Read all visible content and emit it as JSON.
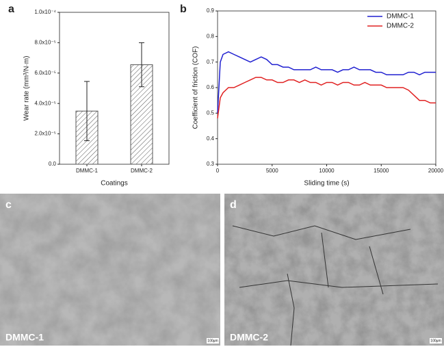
{
  "chart_data": [
    {
      "type": "bar",
      "panel": "a",
      "xlabel": "Coatings",
      "ylabel": "Wear rate (mm³/N·m)",
      "categories": [
        "DMMC-1",
        "DMMC-2"
      ],
      "values": [
        3.5e-05,
        6.55e-05
      ],
      "errors": [
        1.95e-05,
        1.45e-05
      ],
      "color": "#555555",
      "ylim": [
        0,
        0.0001
      ],
      "yticks": [
        {
          "value": 0,
          "label": "0.0"
        },
        {
          "value": 2e-05,
          "label": "2.0x10⁻⁵"
        },
        {
          "value": 4e-05,
          "label": "4.0x10⁻⁵"
        },
        {
          "value": 6e-05,
          "label": "6.0x10⁻⁵"
        },
        {
          "value": 8e-05,
          "label": "8.0x10⁻⁵"
        },
        {
          "value": 0.0001,
          "label": "1.0x10⁻⁴"
        }
      ]
    },
    {
      "type": "line",
      "panel": "b",
      "xlabel": "Sliding time (s)",
      "ylabel": "Coefficient of friction (COF)",
      "x": [
        0,
        250,
        500,
        1000,
        1500,
        2000,
        2500,
        3000,
        3500,
        4000,
        4500,
        5000,
        5500,
        6000,
        6500,
        7000,
        7500,
        8000,
        8500,
        9000,
        9500,
        10000,
        10500,
        11000,
        11500,
        12000,
        12500,
        13000,
        13500,
        14000,
        14500,
        15000,
        15500,
        16000,
        16500,
        17000,
        17500,
        18000,
        18500,
        19000,
        19500,
        20000
      ],
      "series": [
        {
          "name": "DMMC-1",
          "color": "#1f1fd0",
          "values": [
            0.5,
            0.7,
            0.73,
            0.74,
            0.73,
            0.72,
            0.71,
            0.7,
            0.71,
            0.72,
            0.71,
            0.69,
            0.69,
            0.68,
            0.68,
            0.67,
            0.67,
            0.67,
            0.67,
            0.68,
            0.67,
            0.67,
            0.67,
            0.66,
            0.67,
            0.67,
            0.68,
            0.67,
            0.67,
            0.67,
            0.66,
            0.66,
            0.65,
            0.65,
            0.65,
            0.65,
            0.66,
            0.66,
            0.65,
            0.66,
            0.66,
            0.66
          ]
        },
        {
          "name": "DMMC-2",
          "color": "#e02020",
          "values": [
            0.48,
            0.56,
            0.58,
            0.6,
            0.6,
            0.61,
            0.62,
            0.63,
            0.64,
            0.64,
            0.63,
            0.63,
            0.62,
            0.62,
            0.63,
            0.63,
            0.62,
            0.63,
            0.62,
            0.62,
            0.61,
            0.62,
            0.62,
            0.61,
            0.62,
            0.62,
            0.61,
            0.61,
            0.62,
            0.61,
            0.61,
            0.61,
            0.6,
            0.6,
            0.6,
            0.6,
            0.59,
            0.57,
            0.55,
            0.55,
            0.54,
            0.54
          ]
        }
      ],
      "xlim": [
        0,
        20000
      ],
      "xticks": [
        0,
        5000,
        10000,
        15000,
        20000
      ],
      "ylim": [
        0.3,
        0.9
      ],
      "yticks": [
        0.3,
        0.4,
        0.5,
        0.6,
        0.7,
        0.8,
        0.9
      ],
      "legend": "top-right"
    }
  ],
  "micrographs": [
    {
      "panel": "c",
      "caption": "DMMC-1",
      "scale_bar": "100μm"
    },
    {
      "panel": "d",
      "caption": "DMMC-2",
      "scale_bar": "100μm"
    }
  ]
}
